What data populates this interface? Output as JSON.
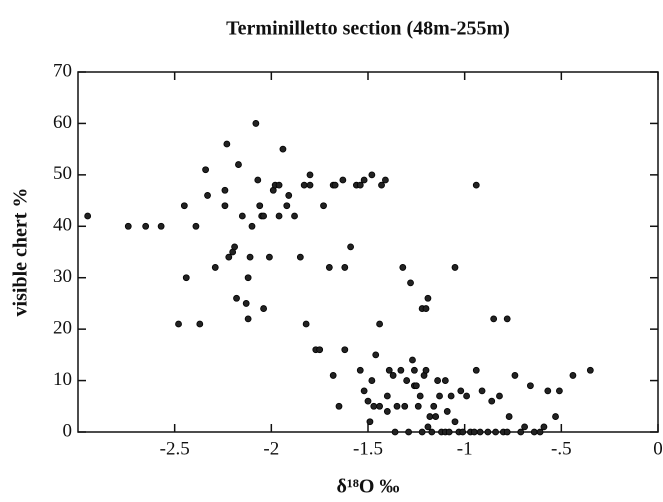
{
  "chart_data": {
    "type": "scatter",
    "title": "Terminilletto section (48m-255m)",
    "x_label": "δ¹⁸O ‰",
    "y_label": "visible chert %",
    "color": "#222222",
    "xlim": [
      -3,
      0
    ],
    "ylim": [
      0,
      70
    ],
    "xticks": [
      -2.5,
      -2,
      -1.5,
      -1,
      {
        "value": -0.5,
        "label": "-.5"
      },
      0
    ],
    "yticks": [
      0,
      10,
      20,
      30,
      40,
      50,
      60,
      70
    ],
    "x": [
      -2.95,
      -2.74,
      -2.65,
      -2.57,
      -2.48,
      -2.44,
      -2.45,
      -2.39,
      -2.37,
      -2.34,
      -2.33,
      -2.29,
      -2.23,
      -2.24,
      -2.24,
      -2.22,
      -2.2,
      -2.19,
      -2.18,
      -2.17,
      -2.15,
      -2.13,
      -2.12,
      -2.11,
      -2.1,
      -2.12,
      -2.08,
      -2.07,
      -2.06,
      -2.05,
      -2.04,
      -2.04,
      -2.01,
      -1.99,
      -1.98,
      -1.96,
      -1.94,
      -1.96,
      -1.92,
      -1.91,
      -1.88,
      -1.85,
      -1.83,
      -1.8,
      -1.8,
      -1.82,
      -1.77,
      -1.75,
      -1.73,
      -1.7,
      -1.68,
      -1.68,
      -1.67,
      -1.63,
      -1.65,
      -1.62,
      -1.62,
      -1.59,
      -1.56,
      -1.54,
      -1.54,
      -1.52,
      -1.52,
      -1.5,
      -1.48,
      -1.49,
      -1.48,
      -1.47,
      -1.46,
      -1.44,
      -1.43,
      -1.41,
      -1.44,
      -1.4,
      -1.4,
      -1.39,
      -1.37,
      -1.36,
      -1.35,
      -1.33,
      -1.32,
      -1.31,
      -1.3,
      -1.29,
      -1.28,
      -1.27,
      -1.26,
      -1.26,
      -1.25,
      -1.24,
      -1.23,
      -1.22,
      -1.21,
      -1.2,
      -1.19,
      -1.19,
      -1.18,
      -1.17,
      -1.16,
      -1.15,
      -1.14,
      -1.13,
      -1.12,
      -1.1,
      -1.1,
      -1.09,
      -1.08,
      -1.07,
      -1.05,
      -1.03,
      -1.02,
      -1.01,
      -0.99,
      -0.97,
      -0.95,
      -0.94,
      -0.92,
      -0.91,
      -0.88,
      -0.86,
      -0.84,
      -0.82,
      -0.8,
      -0.78,
      -0.77,
      -0.74,
      -0.71,
      -0.69,
      -0.66,
      -0.64,
      -0.61,
      -0.59,
      -0.57,
      -0.53,
      -0.51,
      -0.44,
      -0.35,
      -0.94,
      -1.22,
      -1.2,
      -1.05,
      -0.85,
      -0.78
    ],
    "values": [
      42,
      40,
      40,
      40,
      21,
      30,
      44,
      40,
      21,
      51,
      46,
      32,
      56,
      47,
      44,
      34,
      35,
      36,
      26,
      52,
      42,
      25,
      30,
      34,
      40,
      22,
      60,
      49,
      44,
      42,
      42,
      24,
      34,
      47,
      48,
      48,
      55,
      42,
      44,
      46,
      42,
      34,
      48,
      48,
      50,
      21,
      16,
      16,
      44,
      32,
      48,
      11,
      48,
      49,
      5,
      16,
      32,
      36,
      48,
      48,
      12,
      49,
      8,
      6,
      10,
      2,
      50,
      5,
      15,
      21,
      48,
      49,
      5,
      4,
      7,
      12,
      11,
      0,
      5,
      12,
      32,
      5,
      10,
      0,
      29,
      14,
      12,
      9,
      9,
      5,
      7,
      0,
      11,
      12,
      26,
      1,
      3,
      0,
      5,
      3,
      10,
      7,
      0,
      0,
      10,
      4,
      0,
      7,
      2,
      0,
      8,
      0,
      7,
      0,
      0,
      12,
      0,
      8,
      0,
      6,
      0,
      7,
      0,
      0,
      3,
      11,
      0,
      1,
      9,
      0,
      0,
      1,
      8,
      3,
      8,
      11,
      12,
      48,
      24,
      24,
      32,
      22,
      22
    ]
  }
}
